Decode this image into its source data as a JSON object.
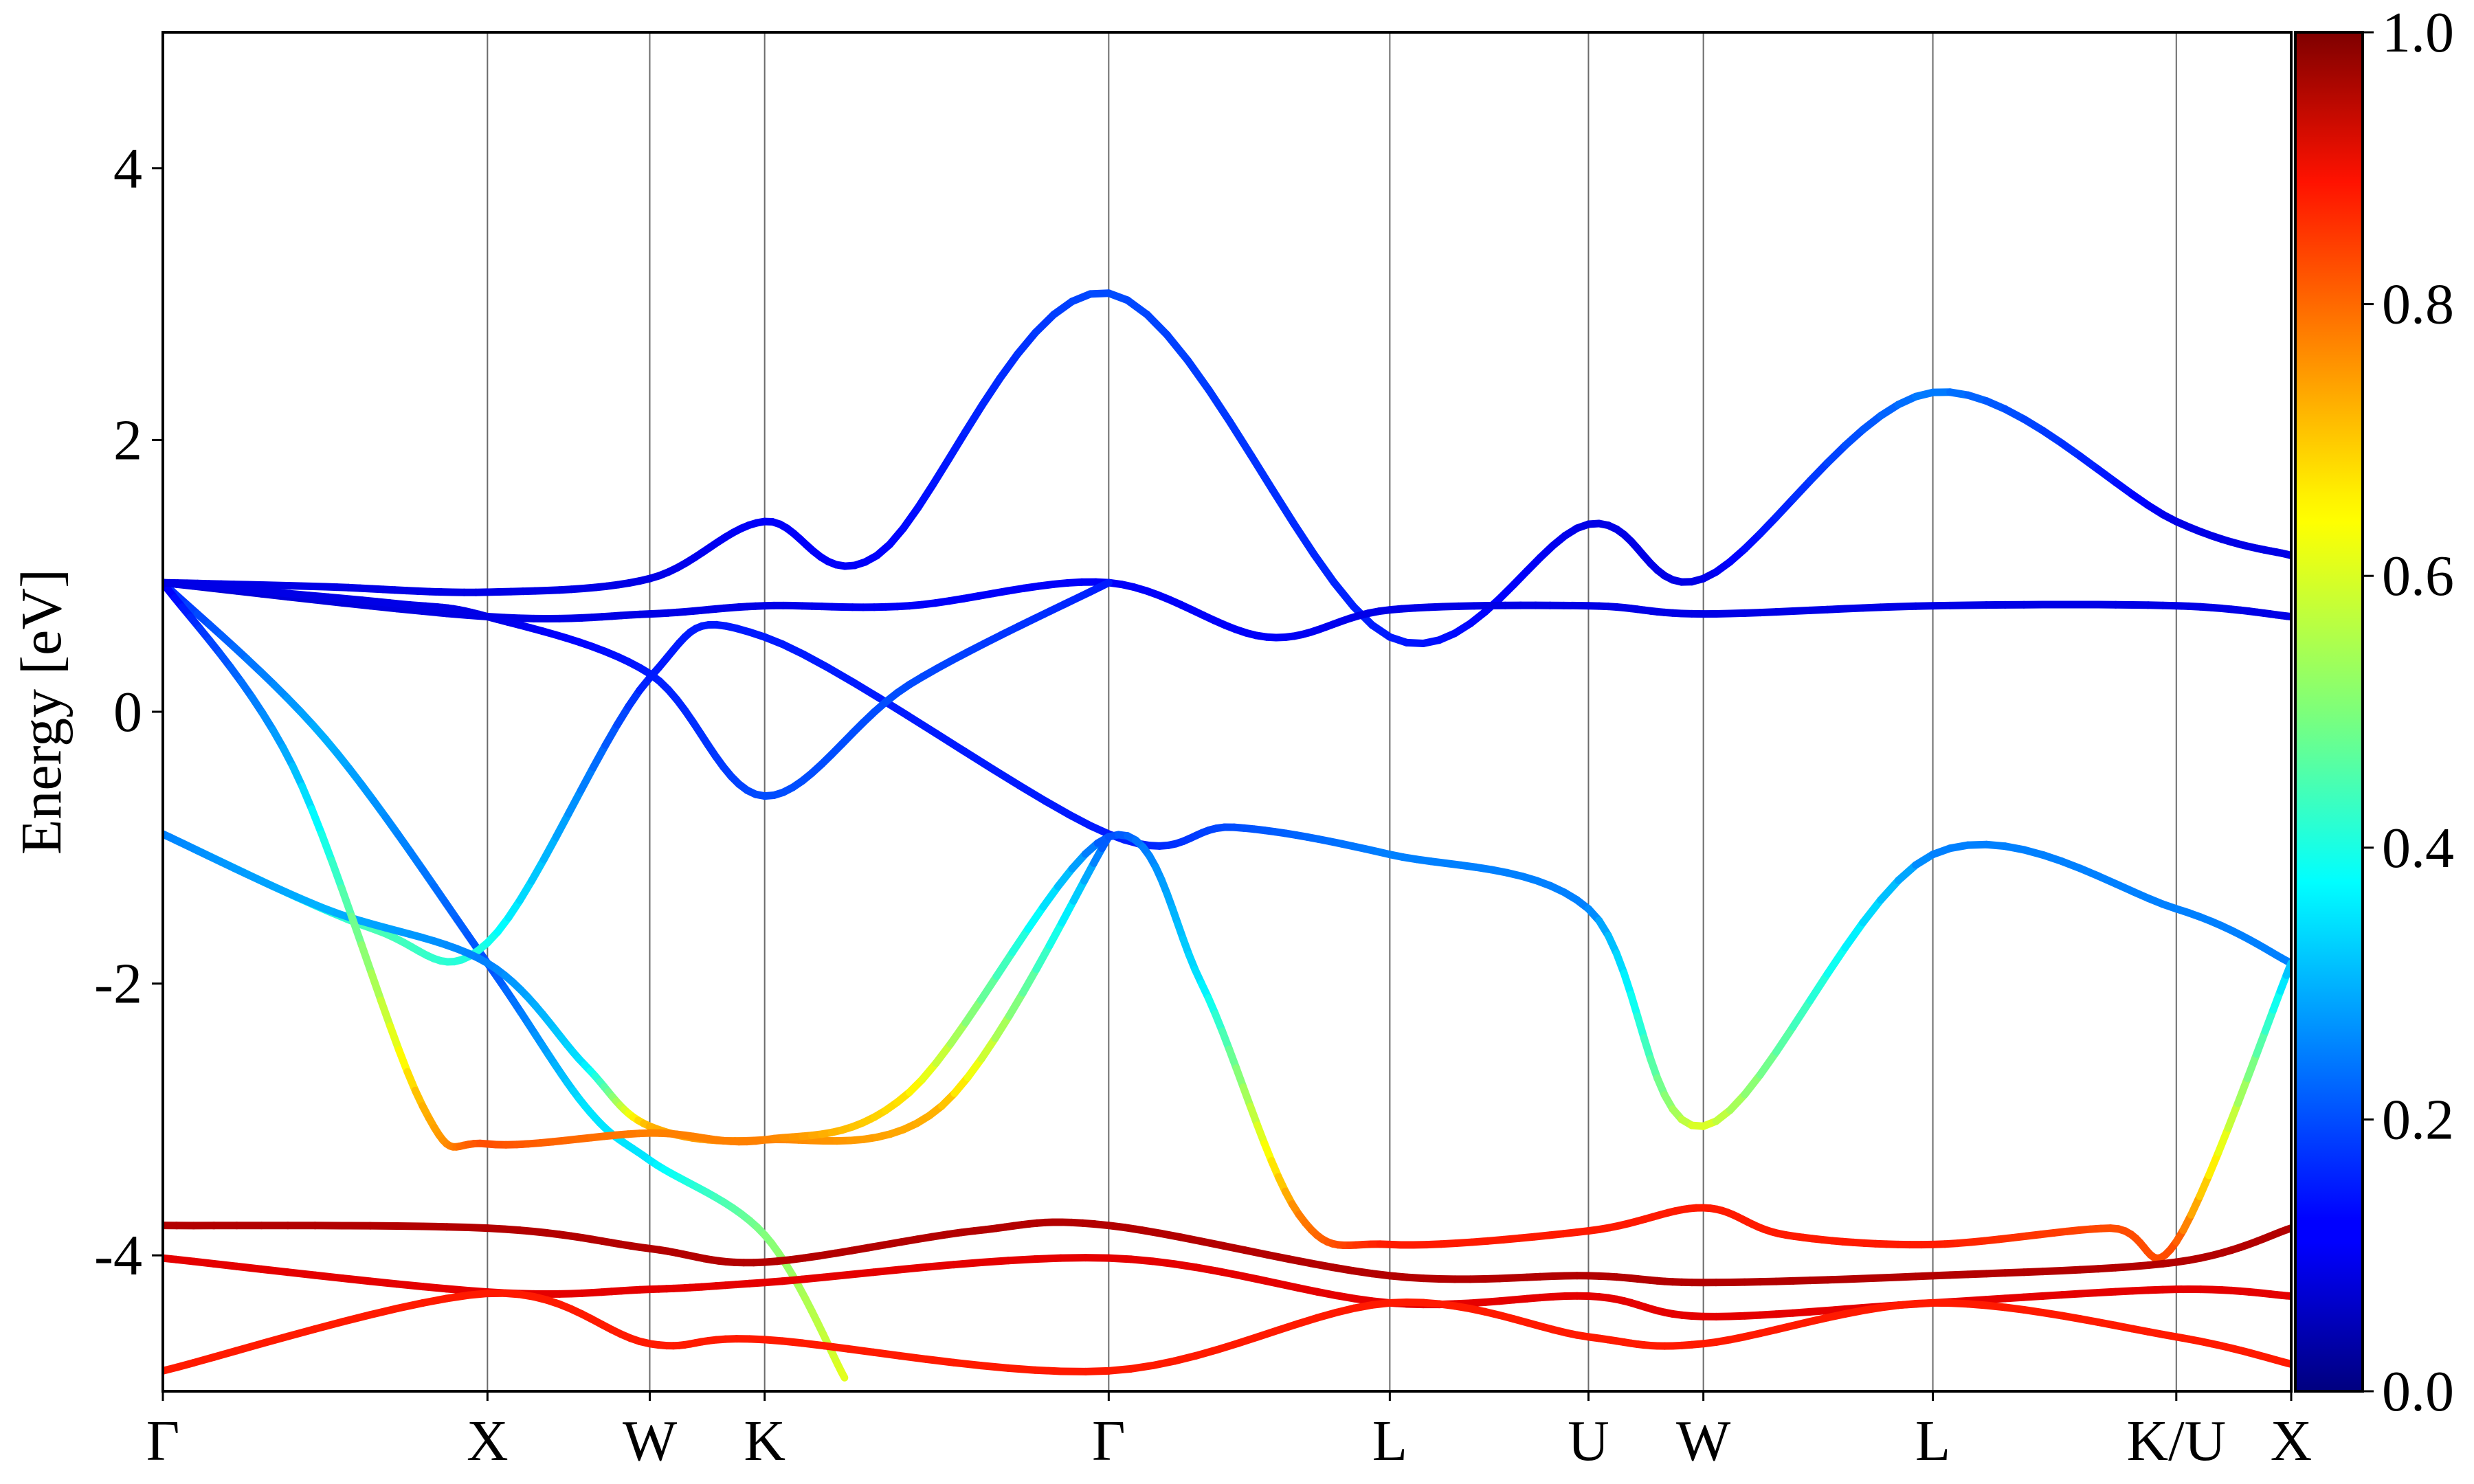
{
  "chart_data": {
    "type": "line",
    "title": "",
    "xlabel": "",
    "ylabel": "Energy [eV]",
    "ylim": [
      -5,
      5
    ],
    "yticks": [
      -4,
      -2,
      0,
      2,
      4
    ],
    "ytick_labels": [
      "-4",
      "-2",
      "0",
      "2",
      "4"
    ],
    "grid": false,
    "k_points": [
      {
        "label": "Γ",
        "x": 0.0
      },
      {
        "label": "X",
        "x": 1.0
      },
      {
        "label": "W",
        "x": 1.5
      },
      {
        "label": "K",
        "x": 1.854
      },
      {
        "label": "Γ",
        "x": 2.914
      },
      {
        "label": "L",
        "x": 3.78
      },
      {
        "label": "U",
        "x": 4.392
      },
      {
        "label": "W",
        "x": 4.746
      },
      {
        "label": "L",
        "x": 5.453
      },
      {
        "label": "K/U",
        "x": 6.203
      },
      {
        "label": "X",
        "x": 6.557
      }
    ],
    "colorbar": {
      "colormap": "jet",
      "range": [
        0.0,
        1.0
      ],
      "ticks": [
        0.0,
        0.2,
        0.4,
        0.6,
        0.8,
        1.0
      ],
      "tick_labels": [
        "0.0",
        "0.2",
        "0.4",
        "0.6",
        "0.8",
        "1.0"
      ]
    },
    "series": [
      {
        "points": [
          [
            0,
            0.95
          ],
          [
            0.5,
            0.92
          ],
          [
            1.0,
            0.88
          ],
          [
            1.5,
            0.98
          ],
          [
            1.854,
            1.4
          ],
          [
            2.2,
            1.15
          ],
          [
            2.914,
            3.08
          ],
          [
            3.78,
            0.55
          ],
          [
            4.392,
            1.38
          ],
          [
            4.746,
            0.98
          ],
          [
            5.453,
            2.35
          ],
          [
            6.203,
            1.4
          ],
          [
            6.557,
            1.15
          ]
        ],
        "weights": [
          0.1,
          0.1,
          0.1,
          0.1,
          0.12,
          0.12,
          0.2,
          0.15,
          0.1,
          0.1,
          0.25,
          0.1,
          0.1
        ]
      },
      {
        "points": [
          [
            0,
            0.95
          ],
          [
            1.0,
            0.7
          ],
          [
            1.5,
            0.72
          ],
          [
            1.854,
            0.78
          ],
          [
            2.3,
            0.78
          ],
          [
            2.914,
            0.95
          ],
          [
            3.4,
            0.55
          ],
          [
            3.78,
            0.75
          ],
          [
            4.392,
            0.78
          ],
          [
            4.746,
            0.72
          ],
          [
            5.453,
            0.78
          ],
          [
            6.203,
            0.78
          ],
          [
            6.557,
            0.7
          ]
        ],
        "weights": [
          0.08,
          0.1,
          0.1,
          0.1,
          0.12,
          0.12,
          0.12,
          0.1,
          0.1,
          0.1,
          0.1,
          0.1,
          0.1
        ]
      },
      {
        "points": [
          [
            0,
            0.95
          ],
          [
            0.5,
            -0.2
          ],
          [
            1.0,
            -1.85
          ],
          [
            1.3,
            -2.9
          ],
          [
            1.5,
            -3.3
          ],
          [
            1.854,
            -3.85
          ],
          [
            2.1,
            -4.9
          ]
        ],
        "weights": [
          0.15,
          0.3,
          0.2,
          0.35,
          0.35,
          0.5,
          0.6
        ]
      },
      {
        "points": [
          [
            0,
            -0.9
          ],
          [
            0.65,
            -1.6
          ],
          [
            1.0,
            -1.7
          ],
          [
            1.5,
            0.25
          ],
          [
            1.854,
            0.55
          ],
          [
            2.914,
            -0.9
          ],
          [
            3.3,
            -0.85
          ],
          [
            3.78,
            -1.05
          ],
          [
            4.392,
            -1.45
          ],
          [
            4.746,
            -3.05
          ],
          [
            5.453,
            -1.05
          ],
          [
            6.203,
            -1.45
          ],
          [
            6.557,
            -1.85
          ]
        ],
        "weights": [
          0.25,
          0.45,
          0.4,
          0.15,
          0.15,
          0.15,
          0.2,
          0.25,
          0.25,
          0.6,
          0.25,
          0.25,
          0.25
        ]
      },
      {
        "points": [
          [
            0,
            -0.9
          ],
          [
            0.5,
            -1.45
          ],
          [
            1.0,
            -1.85
          ],
          [
            1.3,
            -2.6
          ],
          [
            1.5,
            -3.05
          ],
          [
            1.854,
            -3.15
          ],
          [
            2.4,
            -2.9
          ],
          [
            2.914,
            -0.92
          ]
        ],
        "weights": [
          0.25,
          0.3,
          0.25,
          0.35,
          0.7,
          0.75,
          0.7,
          0.2
        ]
      },
      {
        "points": [
          [
            0,
            0.95
          ],
          [
            0.4,
            -0.4
          ],
          [
            0.8,
            -2.9
          ],
          [
            1.0,
            -3.18
          ],
          [
            1.5,
            -3.1
          ],
          [
            1.854,
            -3.15
          ],
          [
            2.3,
            -2.8
          ],
          [
            2.914,
            -0.92
          ],
          [
            3.2,
            -2.0
          ],
          [
            3.5,
            -3.7
          ],
          [
            3.78,
            -3.92
          ],
          [
            4.392,
            -3.82
          ],
          [
            4.746,
            -3.65
          ],
          [
            5.0,
            -3.85
          ],
          [
            5.453,
            -3.92
          ],
          [
            6.0,
            -3.8
          ],
          [
            6.203,
            -3.9
          ],
          [
            6.557,
            -1.85
          ]
        ],
        "weights": [
          0.1,
          0.3,
          0.7,
          0.8,
          0.75,
          0.75,
          0.65,
          0.2,
          0.35,
          0.75,
          0.85,
          0.85,
          0.85,
          0.85,
          0.85,
          0.8,
          0.8,
          0.3
        ]
      },
      {
        "points": [
          [
            0,
            0.95
          ],
          [
            0.7,
            0.8
          ],
          [
            1.0,
            0.7
          ],
          [
            1.5,
            0.28
          ],
          [
            1.854,
            -0.62
          ],
          [
            2.3,
            0.2
          ],
          [
            2.914,
            0.95
          ]
        ],
        "weights": [
          0.1,
          0.1,
          0.1,
          0.15,
          0.2,
          0.2,
          0.15
        ]
      },
      {
        "points": [
          [
            0,
            -3.78
          ],
          [
            1.0,
            -3.8
          ],
          [
            1.5,
            -3.95
          ],
          [
            1.854,
            -4.05
          ],
          [
            2.5,
            -3.82
          ],
          [
            2.914,
            -3.78
          ],
          [
            3.78,
            -4.15
          ],
          [
            4.392,
            -4.15
          ],
          [
            4.746,
            -4.2
          ],
          [
            5.453,
            -4.15
          ],
          [
            6.203,
            -4.05
          ],
          [
            6.557,
            -3.8
          ]
        ],
        "weights": [
          0.95,
          0.95,
          0.95,
          0.95,
          0.95,
          0.95,
          0.95,
          0.95,
          0.95,
          0.95,
          0.95,
          0.95
        ]
      },
      {
        "points": [
          [
            0,
            -4.02
          ],
          [
            1.0,
            -4.27
          ],
          [
            1.5,
            -4.25
          ],
          [
            1.854,
            -4.2
          ],
          [
            2.914,
            -4.02
          ],
          [
            3.78,
            -4.35
          ],
          [
            4.392,
            -4.3
          ],
          [
            4.746,
            -4.45
          ],
          [
            5.453,
            -4.35
          ],
          [
            6.203,
            -4.25
          ],
          [
            6.557,
            -4.3
          ]
        ],
        "weights": [
          0.9,
          0.9,
          0.9,
          0.9,
          0.9,
          0.9,
          0.9,
          0.9,
          0.9,
          0.9,
          0.9
        ]
      },
      {
        "points": [
          [
            0,
            -4.85
          ],
          [
            1.0,
            -4.28
          ],
          [
            1.5,
            -4.65
          ],
          [
            1.854,
            -4.62
          ],
          [
            2.914,
            -4.85
          ],
          [
            3.78,
            -4.35
          ],
          [
            4.392,
            -4.6
          ],
          [
            4.746,
            -4.65
          ],
          [
            5.453,
            -4.35
          ],
          [
            6.203,
            -4.6
          ],
          [
            6.557,
            -4.8
          ]
        ],
        "weights": [
          0.85,
          0.85,
          0.85,
          0.85,
          0.85,
          0.85,
          0.85,
          0.85,
          0.85,
          0.85,
          0.85
        ]
      }
    ]
  }
}
